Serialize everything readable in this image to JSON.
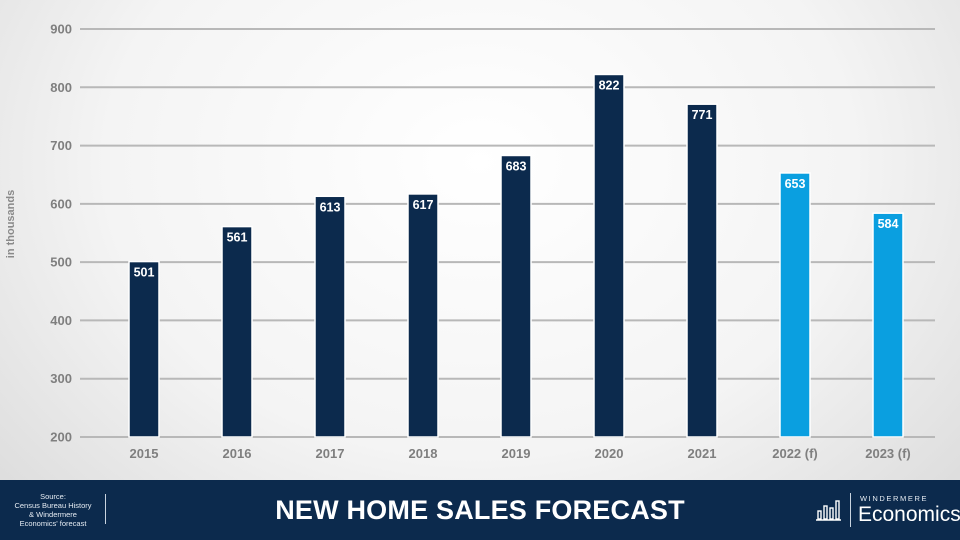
{
  "chart_data": {
    "type": "bar",
    "ylabel": "in thousands",
    "ylim": [
      200,
      900
    ],
    "yticks": [
      200,
      300,
      400,
      500,
      600,
      700,
      800,
      900
    ],
    "grid": true,
    "categories": [
      "2015",
      "2016",
      "2017",
      "2018",
      "2019",
      "2020",
      "2021",
      "2022 (f)",
      "2023 (f)"
    ],
    "values": [
      501,
      561,
      613,
      617,
      683,
      822,
      771,
      653,
      584
    ],
    "data_labels": [
      "501",
      "561",
      "613",
      "617",
      "683",
      "822",
      "771",
      "653",
      "584"
    ],
    "forecast": [
      false,
      false,
      false,
      false,
      false,
      false,
      false,
      true,
      true
    ],
    "colors": {
      "actual": "#0c2a4d",
      "forecast": "#0a9fe0",
      "grid": "#b8b8b8",
      "tick_label": "#7f7f7f"
    }
  },
  "footer": {
    "source_lines": [
      "Source:",
      "Census Bureau History",
      "& Windermere",
      "Economics' forecast"
    ],
    "title": "NEW HOME SALES FORECAST",
    "brand_top": "WINDERMERE",
    "brand_name": "Economics",
    "brand_icon": "bar-chart-icon"
  }
}
